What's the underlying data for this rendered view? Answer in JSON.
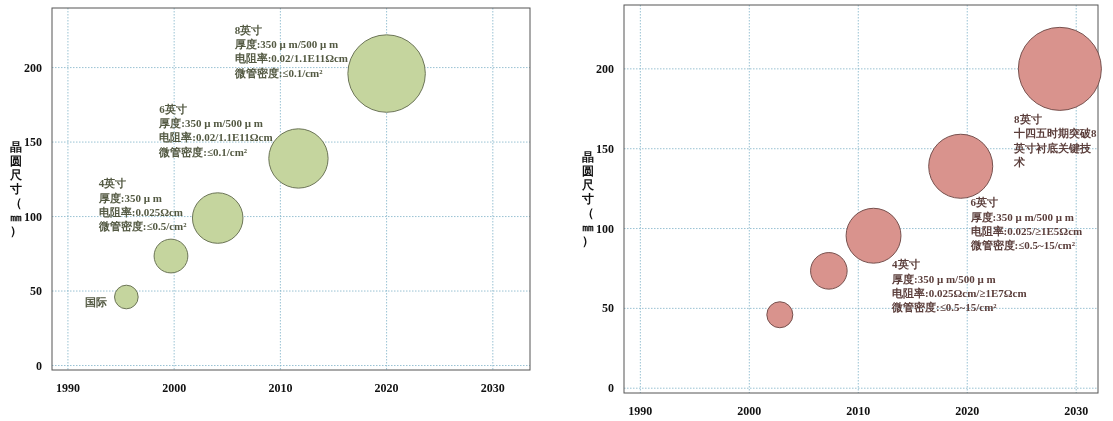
{
  "chart_data": [
    {
      "type": "bubble",
      "ylabel": "晶圆尺寸（㎜）",
      "xlim": [
        1988.5,
        2033.5
      ],
      "ylim": [
        -3,
        240
      ],
      "xticks": [
        1990,
        2000,
        2010,
        2020,
        2030
      ],
      "yticks": [
        0,
        50,
        100,
        150,
        200
      ],
      "grid": true,
      "relative": false,
      "series": [
        {
          "color": "#c5d59e",
          "x": [
            1995.5,
            1999.7,
            2004.1,
            2011.7,
            2020
          ],
          "values": [
            46,
            73.5,
            99,
            139,
            196
          ],
          "sizes": [
            0.093,
            0.19,
            0.425,
            0.586,
            1
          ]
        }
      ],
      "annotations": [
        "国际",
        "4英寸",
        "厚度:350 μ m",
        "电阻率:0.025Ωcm",
        "微管密度:≤0.5/cm²",
        "6英寸",
        "厚度:350 μ m/500 μ m",
        "电阻率:0.02/1.1E11Ωcm",
        "微管密度:≤0.1/cm²",
        "8英寸",
        "厚度:350 μ m/500 μ m",
        "电阻率:0.02/1.1E11Ωcm",
        "微管密度:≤0.1/cm²"
      ]
    },
    {
      "type": "bubble",
      "ylabel": "晶圆尺寸（㎜）",
      "xlim": [
        1988.5,
        2032
      ],
      "ylim": [
        -3,
        240
      ],
      "xticks": [
        1990,
        2000,
        2010,
        2020,
        2030
      ],
      "yticks": [
        0,
        50,
        100,
        150,
        200
      ],
      "grid": true,
      "series": [
        {
          "color": "#d9938d",
          "x": [
            2002.8,
            2007.3,
            2011.4,
            2019.4,
            2028.5
          ],
          "values": [
            46,
            73.5,
            95.5,
            139,
            200
          ],
          "sizes": [
            0.098,
            0.194,
            0.437,
            0.595,
            1
          ]
        }
      ],
      "annotations": [
        "4英寸",
        "厚度:350 μ m/500 μ m",
        "电阻率:0.025Ωcm/≥1E7Ωcm",
        "微管密度:≤0.5~15/cm²",
        "6英寸",
        "厚度:350 μ m/500 μ m",
        "电阻率:0.025/≥1E5Ωcm",
        "微管密度:≤0.5~15/cm²",
        "8英寸",
        "十四五时期突破8英寸衬底关键技术"
      ]
    }
  ]
}
